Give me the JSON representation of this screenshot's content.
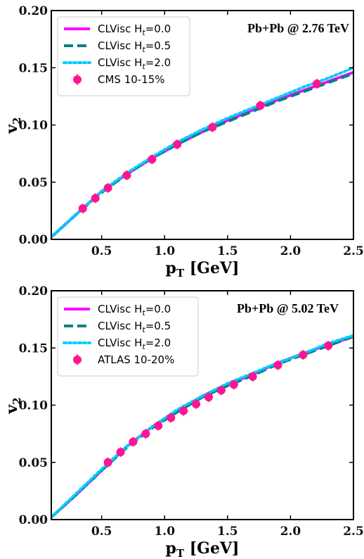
{
  "chart_data": [
    {
      "type": "line",
      "annotation": "Pb+Pb @ 2.76 TeV",
      "xlabel": "p",
      "xlabel_sub": "T",
      "xlabel_unit": " [GeV]",
      "ylabel": "v",
      "ylabel_sub": "2",
      "xlim": [
        0.1,
        2.5
      ],
      "ylim": [
        0.0,
        0.2
      ],
      "xticks": [
        0.5,
        1.0,
        1.5,
        2.0,
        2.5
      ],
      "xtick_labels": [
        "0.5",
        "1.0",
        "1.5",
        "2.0",
        "2.5"
      ],
      "yticks": [
        0.0,
        0.05,
        0.1,
        0.15,
        0.2
      ],
      "ytick_labels": [
        "0.00",
        "0.05",
        "0.10",
        "0.15",
        "0.20"
      ],
      "legend_position": "top-left",
      "series": [
        {
          "name": "CLVisc H",
          "name_sub": "t",
          "name_suffix": "=0.0",
          "color": "#ff00ff",
          "dash": "solid",
          "x": [
            0.1,
            0.3,
            0.5,
            0.7,
            0.9,
            1.1,
            1.3,
            1.5,
            1.7,
            1.9,
            2.1,
            2.3,
            2.5
          ],
          "y": [
            0.002,
            0.022,
            0.042,
            0.057,
            0.071,
            0.083,
            0.094,
            0.104,
            0.113,
            0.122,
            0.13,
            0.138,
            0.146
          ]
        },
        {
          "name": "CLVisc H",
          "name_sub": "t",
          "name_suffix": "=0.5",
          "color": "#008080",
          "dash": "dashed",
          "x": [
            0.1,
            0.3,
            0.5,
            0.7,
            0.9,
            1.1,
            1.3,
            1.5,
            1.7,
            1.9,
            2.1,
            2.3,
            2.5
          ],
          "y": [
            0.002,
            0.022,
            0.041,
            0.057,
            0.071,
            0.083,
            0.094,
            0.103,
            0.112,
            0.121,
            0.129,
            0.137,
            0.145
          ]
        },
        {
          "name": "CLVisc H",
          "name_sub": "t",
          "name_suffix": "=2.0",
          "color": "#00ccff",
          "dash": "dotted",
          "x": [
            0.1,
            0.3,
            0.5,
            0.7,
            0.9,
            1.1,
            1.3,
            1.5,
            1.7,
            1.9,
            2.1,
            2.3,
            2.5
          ],
          "y": [
            0.002,
            0.022,
            0.042,
            0.058,
            0.072,
            0.085,
            0.096,
            0.106,
            0.115,
            0.124,
            0.133,
            0.141,
            0.15
          ]
        }
      ],
      "data_points": {
        "name": "CMS 10-15%",
        "color": "#ff1493",
        "x": [
          0.35,
          0.45,
          0.55,
          0.7,
          0.9,
          1.1,
          1.38,
          1.76,
          2.21
        ],
        "y": [
          0.027,
          0.036,
          0.045,
          0.056,
          0.07,
          0.083,
          0.098,
          0.117,
          0.136
        ]
      }
    },
    {
      "type": "line",
      "annotation": "Pb+Pb @ 5.02 TeV",
      "xlabel": "p",
      "xlabel_sub": "T",
      "xlabel_unit": " [GeV]",
      "ylabel": "v",
      "ylabel_sub": "2",
      "xlim": [
        0.1,
        2.5
      ],
      "ylim": [
        0.0,
        0.2
      ],
      "xticks": [
        0.5,
        1.0,
        1.5,
        2.0,
        2.5
      ],
      "xtick_labels": [
        "0.5",
        "1.0",
        "1.5",
        "2.0",
        "2.5"
      ],
      "yticks": [
        0.0,
        0.05,
        0.1,
        0.15,
        0.2
      ],
      "ytick_labels": [
        "0.00",
        "0.05",
        "0.10",
        "0.15",
        "0.20"
      ],
      "legend_position": "top-left",
      "series": [
        {
          "name": "CLVisc H",
          "name_sub": "t",
          "name_suffix": "=0.0",
          "color": "#ff00ff",
          "dash": "solid",
          "x": [
            0.1,
            0.3,
            0.5,
            0.7,
            0.9,
            1.1,
            1.3,
            1.5,
            1.7,
            1.9,
            2.1,
            2.3,
            2.5
          ],
          "y": [
            0.002,
            0.022,
            0.043,
            0.064,
            0.081,
            0.095,
            0.108,
            0.118,
            0.127,
            0.137,
            0.145,
            0.153,
            0.16
          ]
        },
        {
          "name": "CLVisc H",
          "name_sub": "t",
          "name_suffix": "=0.5",
          "color": "#008080",
          "dash": "dashed",
          "x": [
            0.1,
            0.3,
            0.5,
            0.7,
            0.9,
            1.1,
            1.3,
            1.5,
            1.7,
            1.9,
            2.1,
            2.3,
            2.5
          ],
          "y": [
            0.002,
            0.022,
            0.043,
            0.063,
            0.08,
            0.094,
            0.107,
            0.117,
            0.126,
            0.136,
            0.144,
            0.152,
            0.16
          ]
        },
        {
          "name": "CLVisc H",
          "name_sub": "t",
          "name_suffix": "=2.0",
          "color": "#00ccff",
          "dash": "dotted",
          "x": [
            0.1,
            0.3,
            0.5,
            0.7,
            0.9,
            1.1,
            1.3,
            1.5,
            1.7,
            1.9,
            2.1,
            2.3,
            2.5
          ],
          "y": [
            0.002,
            0.023,
            0.044,
            0.064,
            0.081,
            0.096,
            0.108,
            0.119,
            0.128,
            0.137,
            0.145,
            0.154,
            0.161
          ]
        }
      ],
      "data_points": {
        "name": "ATLAS 10-20%",
        "color": "#ff1493",
        "x": [
          0.55,
          0.65,
          0.75,
          0.85,
          0.95,
          1.05,
          1.15,
          1.25,
          1.35,
          1.45,
          1.55,
          1.7,
          1.9,
          2.1,
          2.3
        ],
        "y": [
          0.05,
          0.059,
          0.068,
          0.075,
          0.082,
          0.089,
          0.095,
          0.101,
          0.107,
          0.113,
          0.118,
          0.125,
          0.135,
          0.144,
          0.152
        ]
      }
    }
  ]
}
